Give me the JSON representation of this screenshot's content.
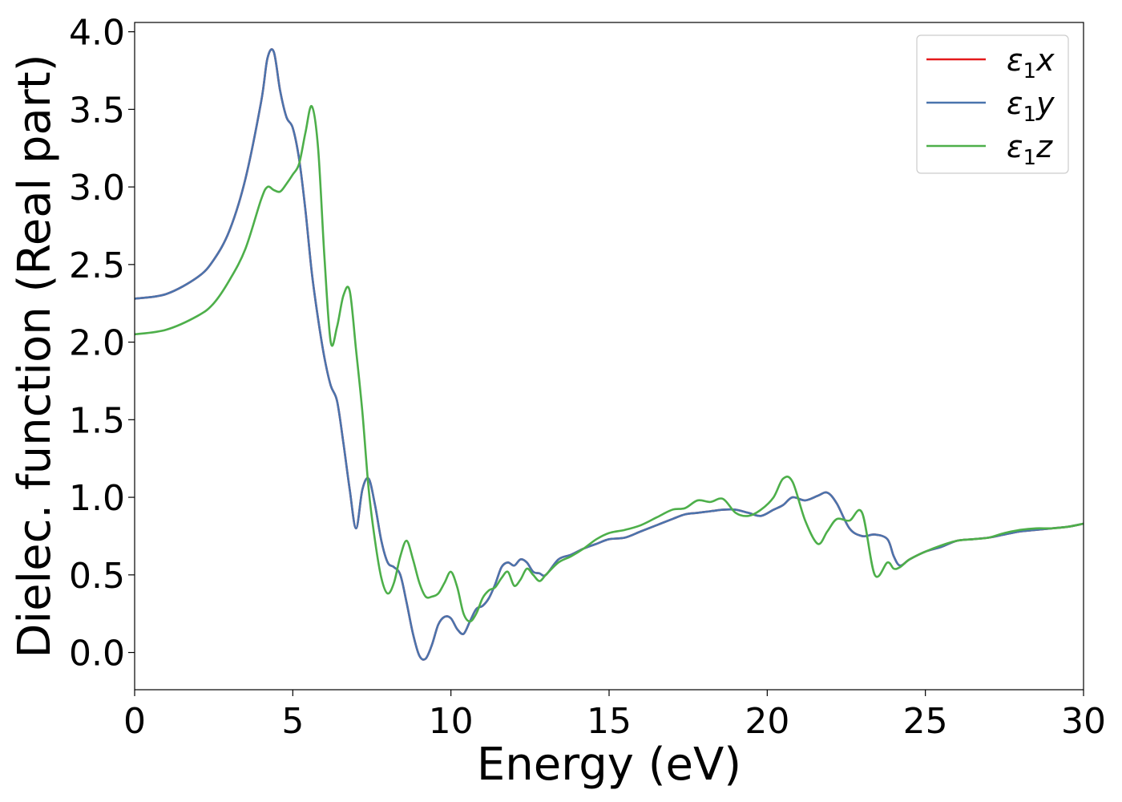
{
  "chart_data": {
    "type": "line",
    "xlabel": "Energy (eV)",
    "ylabel": "Dielec. function (Real part)",
    "xlim": [
      0,
      30
    ],
    "ylim": [
      -0.24,
      4.06
    ],
    "xticks": [
      0,
      5,
      10,
      15,
      20,
      25,
      30
    ],
    "yticks": [
      0.0,
      0.5,
      1.0,
      1.5,
      2.0,
      2.5,
      3.0,
      3.5,
      4.0
    ],
    "grid": false,
    "legend_position": "top-right",
    "series": [
      {
        "name": "ε1x",
        "symbol": "ε",
        "subscript": "1",
        "suffix": "x",
        "color": "#e41a1c",
        "x": [
          0,
          1,
          2,
          2.5,
          3,
          3.5,
          4,
          4.2,
          4.4,
          4.6,
          4.8,
          5,
          5.2,
          5.4,
          5.6,
          5.8,
          6,
          6.2,
          6.4,
          6.6,
          6.8,
          7,
          7.2,
          7.4,
          7.6,
          7.8,
          8,
          8.2,
          8.4,
          8.6,
          8.8,
          9,
          9.2,
          9.4,
          9.6,
          9.8,
          10,
          10.2,
          10.4,
          10.6,
          10.8,
          11,
          11.2,
          11.4,
          11.6,
          11.8,
          12,
          12.2,
          12.4,
          12.6,
          12.8,
          13,
          13.4,
          13.8,
          14.2,
          14.6,
          15,
          15.5,
          16,
          16.5,
          17,
          17.4,
          17.8,
          18.2,
          18.6,
          19,
          19.4,
          19.8,
          20.2,
          20.5,
          20.8,
          21.2,
          21.6,
          21.9,
          22.2,
          22.6,
          23,
          23.4,
          23.8,
          24,
          24.2,
          24.5,
          25,
          25.5,
          26,
          26.5,
          27,
          27.5,
          28,
          28.5,
          29,
          29.5,
          30
        ],
        "y": [
          2.28,
          2.31,
          2.42,
          2.53,
          2.72,
          3.05,
          3.55,
          3.83,
          3.87,
          3.62,
          3.45,
          3.38,
          3.18,
          2.85,
          2.45,
          2.15,
          1.9,
          1.72,
          1.62,
          1.35,
          1.05,
          0.8,
          1.05,
          1.12,
          0.95,
          0.72,
          0.58,
          0.55,
          0.5,
          0.32,
          0.12,
          -0.02,
          -0.04,
          0.05,
          0.18,
          0.23,
          0.22,
          0.15,
          0.12,
          0.2,
          0.28,
          0.3,
          0.35,
          0.44,
          0.55,
          0.58,
          0.56,
          0.6,
          0.58,
          0.52,
          0.51,
          0.5,
          0.6,
          0.63,
          0.67,
          0.7,
          0.73,
          0.74,
          0.78,
          0.82,
          0.86,
          0.89,
          0.9,
          0.91,
          0.92,
          0.92,
          0.9,
          0.88,
          0.92,
          0.95,
          1.0,
          0.98,
          1.01,
          1.03,
          0.96,
          0.8,
          0.75,
          0.76,
          0.73,
          0.62,
          0.56,
          0.6,
          0.65,
          0.68,
          0.72,
          0.73,
          0.74,
          0.76,
          0.78,
          0.79,
          0.8,
          0.81,
          0.83
        ]
      },
      {
        "name": "ε1y",
        "symbol": "ε",
        "subscript": "1",
        "suffix": "y",
        "color": "#4a74ad",
        "x": [
          0,
          1,
          2,
          2.5,
          3,
          3.5,
          4,
          4.2,
          4.4,
          4.6,
          4.8,
          5,
          5.2,
          5.4,
          5.6,
          5.8,
          6,
          6.2,
          6.4,
          6.6,
          6.8,
          7,
          7.2,
          7.4,
          7.6,
          7.8,
          8,
          8.2,
          8.4,
          8.6,
          8.8,
          9,
          9.2,
          9.4,
          9.6,
          9.8,
          10,
          10.2,
          10.4,
          10.6,
          10.8,
          11,
          11.2,
          11.4,
          11.6,
          11.8,
          12,
          12.2,
          12.4,
          12.6,
          12.8,
          13,
          13.4,
          13.8,
          14.2,
          14.6,
          15,
          15.5,
          16,
          16.5,
          17,
          17.4,
          17.8,
          18.2,
          18.6,
          19,
          19.4,
          19.8,
          20.2,
          20.5,
          20.8,
          21.2,
          21.6,
          21.9,
          22.2,
          22.6,
          23,
          23.4,
          23.8,
          24,
          24.2,
          24.5,
          25,
          25.5,
          26,
          26.5,
          27,
          27.5,
          28,
          28.5,
          29,
          29.5,
          30
        ],
        "y": [
          2.28,
          2.31,
          2.42,
          2.53,
          2.72,
          3.05,
          3.55,
          3.83,
          3.87,
          3.62,
          3.45,
          3.38,
          3.18,
          2.85,
          2.45,
          2.15,
          1.9,
          1.72,
          1.62,
          1.35,
          1.05,
          0.8,
          1.05,
          1.12,
          0.95,
          0.72,
          0.58,
          0.55,
          0.5,
          0.32,
          0.12,
          -0.02,
          -0.04,
          0.05,
          0.18,
          0.23,
          0.22,
          0.15,
          0.12,
          0.2,
          0.28,
          0.3,
          0.35,
          0.44,
          0.55,
          0.58,
          0.56,
          0.6,
          0.58,
          0.52,
          0.51,
          0.5,
          0.6,
          0.63,
          0.67,
          0.7,
          0.73,
          0.74,
          0.78,
          0.82,
          0.86,
          0.89,
          0.9,
          0.91,
          0.92,
          0.92,
          0.9,
          0.88,
          0.92,
          0.95,
          1.0,
          0.98,
          1.01,
          1.03,
          0.96,
          0.8,
          0.75,
          0.76,
          0.73,
          0.62,
          0.56,
          0.6,
          0.65,
          0.68,
          0.72,
          0.73,
          0.74,
          0.76,
          0.78,
          0.79,
          0.8,
          0.81,
          0.83
        ]
      },
      {
        "name": "ε1z",
        "symbol": "ε",
        "subscript": "1",
        "suffix": "z",
        "color": "#4daf4a",
        "x": [
          0,
          1,
          2,
          2.5,
          3,
          3.5,
          4,
          4.2,
          4.4,
          4.6,
          4.8,
          5,
          5.2,
          5.4,
          5.6,
          5.8,
          6,
          6.2,
          6.4,
          6.6,
          6.8,
          7,
          7.2,
          7.4,
          7.6,
          7.8,
          8,
          8.2,
          8.4,
          8.6,
          8.8,
          9,
          9.2,
          9.4,
          9.6,
          9.8,
          10,
          10.2,
          10.4,
          10.6,
          10.8,
          11,
          11.2,
          11.4,
          11.6,
          11.8,
          12,
          12.2,
          12.4,
          12.6,
          12.8,
          13,
          13.4,
          13.8,
          14.2,
          14.6,
          15,
          15.5,
          16,
          16.5,
          17,
          17.4,
          17.8,
          18.2,
          18.6,
          19,
          19.4,
          19.8,
          20.2,
          20.5,
          20.8,
          21.2,
          21.6,
          21.9,
          22.2,
          22.6,
          23,
          23.4,
          23.8,
          24,
          24.2,
          24.5,
          25,
          25.5,
          26,
          26.5,
          27,
          27.5,
          28,
          28.5,
          29,
          29.5,
          30
        ],
        "y": [
          2.05,
          2.08,
          2.17,
          2.25,
          2.4,
          2.6,
          2.92,
          3.0,
          2.98,
          2.97,
          3.02,
          3.08,
          3.15,
          3.35,
          3.52,
          3.25,
          2.55,
          2.0,
          2.1,
          2.3,
          2.33,
          1.95,
          1.55,
          1.05,
          0.72,
          0.48,
          0.38,
          0.45,
          0.62,
          0.72,
          0.6,
          0.45,
          0.36,
          0.36,
          0.38,
          0.45,
          0.52,
          0.42,
          0.25,
          0.2,
          0.25,
          0.35,
          0.4,
          0.42,
          0.48,
          0.52,
          0.43,
          0.47,
          0.54,
          0.5,
          0.46,
          0.5,
          0.58,
          0.62,
          0.67,
          0.73,
          0.77,
          0.79,
          0.82,
          0.87,
          0.92,
          0.93,
          0.98,
          0.97,
          0.99,
          0.9,
          0.88,
          0.92,
          1.0,
          1.12,
          1.1,
          0.85,
          0.7,
          0.78,
          0.86,
          0.85,
          0.9,
          0.5,
          0.58,
          0.54,
          0.55,
          0.6,
          0.65,
          0.69,
          0.72,
          0.73,
          0.74,
          0.77,
          0.79,
          0.8,
          0.8,
          0.81,
          0.83
        ]
      }
    ]
  }
}
